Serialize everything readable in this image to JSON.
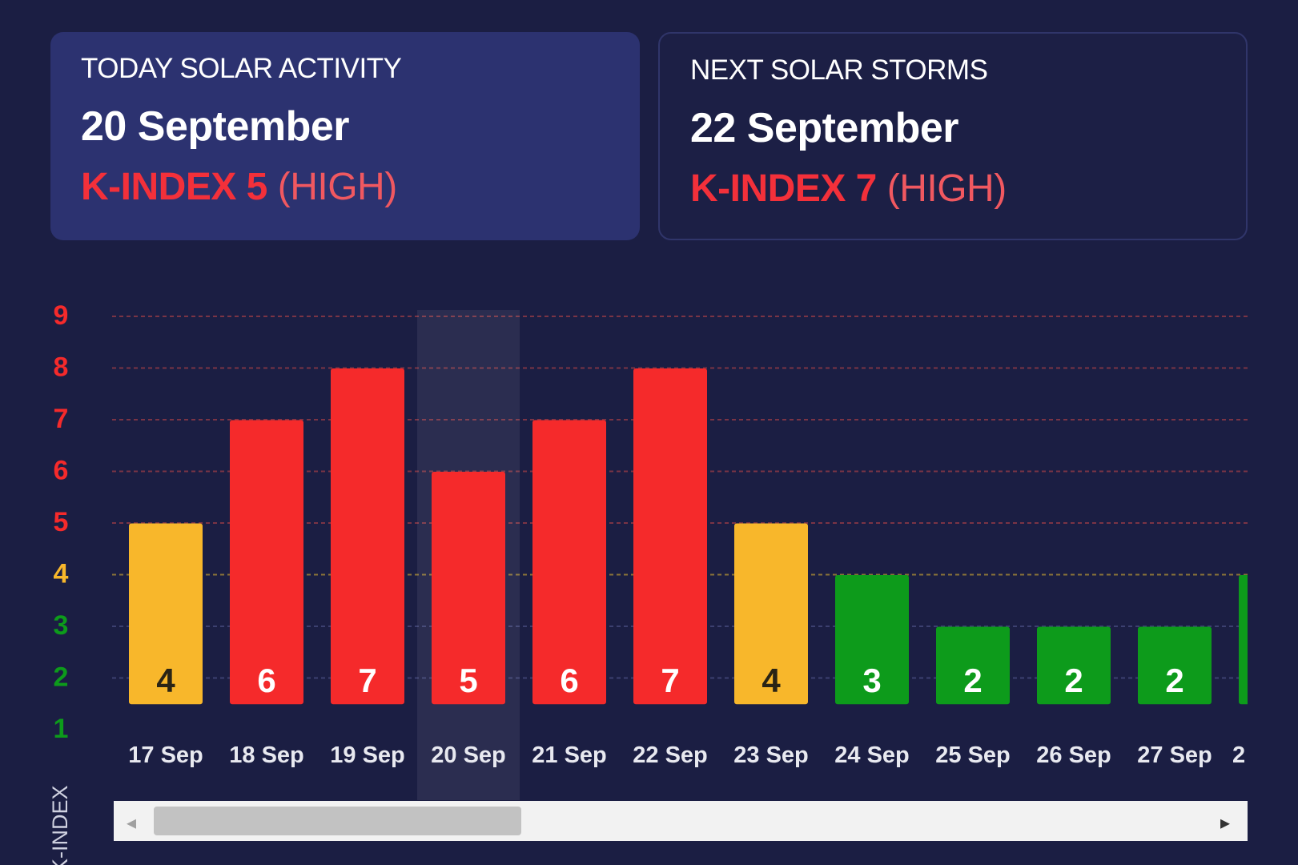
{
  "today_card": {
    "label": "TODAY SOLAR ACTIVITY",
    "date": "20 September",
    "kindex_prefix": "K-INDEX 5",
    "kindex_level": "(HIGH)"
  },
  "next_card": {
    "label": "NEXT SOLAR STORMS",
    "date": "22 September",
    "kindex_prefix": "K-INDEX 7",
    "kindex_level": "(HIGH)"
  },
  "colors": {
    "background": "#1b1e43",
    "high": "#f52a2b",
    "moderate": "#f8b72b",
    "low": "#0d9b1b",
    "scrollbar_track": "#f2f2f2",
    "scrollbar_thumb": "#c2c2c2"
  },
  "chart_data": {
    "type": "bar",
    "ylabel": "K-INDEX",
    "yticks": [
      "1",
      "2",
      "3",
      "4",
      "5",
      "6",
      "7",
      "8",
      "9"
    ],
    "ylim": [
      1,
      9
    ],
    "highlighted_category": "20 Sep",
    "categories": [
      "17 Sep",
      "18 Sep",
      "19 Sep",
      "20 Sep",
      "21 Sep",
      "22 Sep",
      "23 Sep",
      "24 Sep",
      "25 Sep",
      "26 Sep",
      "27 Sep",
      "2"
    ],
    "values": [
      4,
      6,
      7,
      5,
      6,
      7,
      4,
      3,
      2,
      2,
      2,
      3
    ],
    "value_labels": [
      "4",
      "6",
      "7",
      "5",
      "6",
      "7",
      "4",
      "3",
      "2",
      "2",
      "2",
      ""
    ],
    "grid": "dashed horizontal"
  },
  "scrollbar": {
    "left_arrow": "◂",
    "right_arrow": "▸",
    "thumb_fraction": 0.34
  }
}
